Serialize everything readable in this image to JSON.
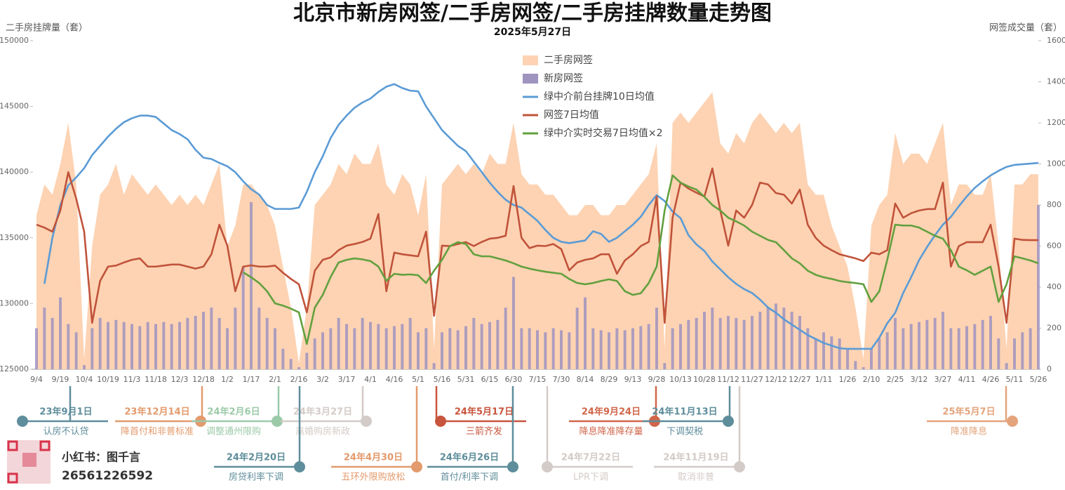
{
  "chart_data": {
    "type": "line",
    "title": "北京市新房网签/二手房网签/二手房挂牌数量走势图",
    "subtitle": "2025年5月27日",
    "y_label": "二手房挂牌量（套）",
    "y2_label": "网签成交量（套）",
    "categories": [
      "9/4",
      null,
      null,
      "9/19",
      null,
      null,
      "10/4",
      null,
      null,
      "10/19",
      null,
      null,
      "11/3",
      null,
      null,
      "11/18",
      null,
      null,
      "12/3",
      null,
      null,
      "12/18",
      null,
      null,
      "1/2",
      null,
      null,
      "1/17",
      null,
      null,
      "2/1",
      null,
      null,
      "2/16",
      null,
      null,
      "3/2",
      null,
      null,
      "3/17",
      null,
      null,
      "4/1",
      null,
      null,
      "4/16",
      null,
      null,
      "5/1",
      null,
      null,
      "5/16",
      null,
      null,
      "5/31",
      null,
      null,
      "6/15",
      null,
      null,
      "6/30",
      null,
      null,
      "7/15",
      null,
      null,
      "7/30",
      null,
      null,
      "8/14",
      null,
      null,
      "8/29",
      null,
      null,
      "9/13",
      null,
      null,
      "9/28",
      null,
      null,
      "10/13",
      null,
      null,
      "10/28",
      null,
      null,
      "11/12",
      null,
      null,
      "11/27",
      null,
      null,
      "12/12",
      null,
      null,
      "12/27",
      null,
      null,
      "1/11",
      null,
      null,
      "1/26",
      null,
      null,
      "2/10",
      null,
      null,
      "2/25",
      null,
      null,
      "3/12",
      null,
      null,
      "3/27",
      null,
      null,
      "4/11",
      null,
      null,
      "4/26",
      null,
      null,
      "5/11",
      null,
      null,
      "5/26"
    ],
    "ylim": [
      125000,
      150000
    ],
    "yticks": [
      125000,
      130000,
      135000,
      140000,
      145000,
      150000
    ],
    "y2lim": [
      0,
      1600
    ],
    "y2ticks": [
      0,
      200,
      400,
      600,
      800,
      1000,
      1200,
      1400,
      1600
    ],
    "legend": "top",
    "series": [
      {
        "name": "二手房网签",
        "type": "area",
        "axis": "y2",
        "color": "#fdd3b3",
        "values": [
          750,
          900,
          850,
          1000,
          1200,
          900,
          50,
          600,
          850,
          900,
          1000,
          850,
          950,
          900,
          850,
          900,
          850,
          800,
          850,
          800,
          850,
          800,
          900,
          1000,
          600,
          700,
          900,
          900,
          850,
          800,
          700,
          500,
          300,
          30,
          300,
          800,
          850,
          900,
          1000,
          950,
          1050,
          1000,
          1000,
          1100,
          900,
          850,
          950,
          900,
          750,
          950,
          100,
          900,
          950,
          1000,
          950,
          1000,
          950,
          1050,
          1000,
          1000,
          1200,
          950,
          900,
          900,
          850,
          850,
          800,
          750,
          750,
          800,
          800,
          750,
          750,
          800,
          800,
          850,
          900,
          950,
          1100,
          100,
          1200,
          1250,
          1200,
          1250,
          1300,
          1350,
          1100,
          1050,
          1150,
          1100,
          1200,
          1250,
          1200,
          1150,
          1200,
          1150,
          1200,
          900,
          850,
          850,
          700,
          600,
          500,
          300,
          50,
          700,
          800,
          850,
          1150,
          1000,
          1050,
          1050,
          1000,
          1100,
          1200,
          800,
          900,
          900,
          850,
          850,
          950,
          600,
          100,
          900,
          900,
          950,
          950
        ]
      },
      {
        "name": "新房网签",
        "type": "bar",
        "axis": "y2",
        "color": "#9f93c0",
        "values": [
          200,
          300,
          250,
          350,
          220,
          180,
          20,
          200,
          250,
          230,
          240,
          230,
          220,
          210,
          230,
          220,
          230,
          220,
          230,
          250,
          260,
          280,
          300,
          250,
          200,
          300,
          500,
          814,
          300,
          250,
          200,
          100,
          50,
          10,
          80,
          150,
          180,
          200,
          250,
          220,
          200,
          250,
          230,
          220,
          200,
          210,
          220,
          250,
          180,
          200,
          30,
          180,
          200,
          190,
          210,
          250,
          220,
          230,
          240,
          300,
          450,
          200,
          200,
          190,
          180,
          200,
          190,
          180,
          300,
          350,
          200,
          190,
          180,
          200,
          190,
          200,
          210,
          220,
          300,
          30,
          200,
          220,
          240,
          250,
          280,
          300,
          250,
          260,
          250,
          240,
          260,
          280,
          300,
          320,
          300,
          280,
          260,
          200,
          150,
          180,
          160,
          150,
          100,
          40,
          10,
          100,
          150,
          180,
          250,
          200,
          220,
          230,
          240,
          250,
          280,
          200,
          200,
          210,
          220,
          240,
          260,
          150,
          30,
          150,
          180,
          200,
          800
        ]
      },
      {
        "name": "绿中介前台挂牌10日均值",
        "type": "line",
        "axis": "y",
        "color": "#5b9bd5",
        "values": [
          null,
          131500,
          135000,
          137500,
          139000,
          139600,
          140300,
          141300,
          142000,
          142700,
          143300,
          143800,
          144100,
          144300,
          144300,
          144200,
          143700,
          143200,
          142900,
          142500,
          141700,
          141100,
          141000,
          140700,
          140450,
          140000,
          139300,
          138700,
          138300,
          137500,
          137200,
          137200,
          137200,
          137300,
          138500,
          140000,
          141200,
          142600,
          143600,
          144300,
          144900,
          145300,
          145600,
          146100,
          146500,
          146700,
          146400,
          146200,
          146150,
          145000,
          144100,
          143200,
          142600,
          142000,
          141600,
          140800,
          140000,
          139200,
          138500,
          137900,
          137500,
          137300,
          136800,
          136300,
          135600,
          135000,
          134700,
          134600,
          134700,
          134800,
          135500,
          135300,
          134700,
          135000,
          135500,
          136000,
          136600,
          137500,
          138250,
          137800,
          137000,
          136500,
          135200,
          134500,
          134000,
          133200,
          132600,
          132000,
          131500,
          131100,
          130800,
          130300,
          129700,
          129300,
          128800,
          128400,
          128000,
          127600,
          127300,
          127000,
          126800,
          126600,
          126550,
          126550,
          126550,
          126550,
          127400,
          128500,
          129300,
          130800,
          132000,
          133300,
          134300,
          135200,
          136000,
          136600,
          137400,
          138150,
          138800,
          139300,
          139750,
          140100,
          140400,
          140550,
          140600,
          140650,
          140700
        ]
      },
      {
        "name": "网签7日均值",
        "type": "line",
        "axis": "y2",
        "color": "#c0533a",
        "values": [
          704,
          690,
          670,
          773,
          960,
          830,
          670,
          226,
          430,
          500,
          505,
          520,
          533,
          540,
          500,
          500,
          505,
          510,
          510,
          500,
          490,
          500,
          560,
          704,
          602,
          380,
          500,
          506,
          500,
          500,
          505,
          470,
          440,
          414,
          277,
          480,
          533,
          545,
          580,
          602,
          610,
          620,
          636,
          756,
          380,
          568,
          560,
          555,
          550,
          670,
          260,
          602,
          600,
          610,
          619,
          600,
          620,
          636,
          640,
          650,
          892,
          640,
          590,
          602,
          600,
          610,
          585,
          482,
          520,
          533,
          540,
          560,
          560,
          465,
          530,
          560,
          600,
          620,
          841,
          226,
          738,
          909,
          880,
          860,
          841,
          978,
          773,
          602,
          773,
          738,
          800,
          909,
          900,
          858,
          850,
          807,
          875,
          704,
          640,
          602,
          580,
          560,
          550,
          540,
          527,
          568,
          560,
          580,
          807,
          738,
          760,
          773,
          780,
          780,
          909,
          500,
          600,
          619,
          619,
          619,
          704,
          500,
          226,
          636,
          630,
          629,
          629
        ]
      },
      {
        "name": "绿中介实时交易7日均值×2",
        "type": "line",
        "axis": "y2",
        "color": "#62a03e",
        "values": [
          null,
          null,
          null,
          null,
          null,
          null,
          null,
          null,
          null,
          null,
          null,
          null,
          null,
          null,
          null,
          null,
          null,
          null,
          null,
          null,
          null,
          null,
          null,
          null,
          null,
          null,
          472,
          448,
          420,
          380,
          321,
          310,
          295,
          277,
          123,
          300,
          362,
          450,
          520,
          533,
          540,
          535,
          527,
          500,
          431,
          465,
          460,
          462,
          458,
          420,
          480,
          533,
          600,
          619,
          610,
          560,
          550,
          550,
          540,
          530,
          516,
          500,
          490,
          482,
          475,
          470,
          465,
          440,
          420,
          414,
          420,
          430,
          438,
          430,
          380,
          362,
          370,
          420,
          500,
          773,
          944,
          909,
          890,
          875,
          840,
          800,
          773,
          738,
          720,
          700,
          670,
          650,
          630,
          619,
          580,
          540,
          516,
          480,
          460,
          448,
          440,
          430,
          424,
          420,
          414,
          328,
          380,
          533,
          704,
          700,
          700,
          690,
          670,
          650,
          636,
          580,
          500,
          482,
          460,
          480,
          500,
          328,
          414,
          550,
          540,
          530,
          516
        ]
      }
    ]
  },
  "annotations": [
    {
      "date": "23年9月1日",
      "text": "认房不认贷",
      "color": "#5e8d9b"
    },
    {
      "date": "23年12月14日",
      "text": "降首付和非普标准",
      "color": "#e39a6c"
    },
    {
      "date": "24年2月6日",
      "text": "调整通州限购",
      "color": "#9ccaa9"
    },
    {
      "date": "24年3月27日",
      "text": "离婚购房新政",
      "color": "#d3cbc7"
    },
    {
      "date": "24年5月17日",
      "text": "三箭齐发",
      "color": "#c8553d"
    },
    {
      "date": "24年9月24日",
      "text": "降息降准降存量",
      "color": "#d0664a"
    },
    {
      "date": "24年11月13日",
      "text": "下调契税",
      "color": "#5e8d9b"
    },
    {
      "date": "25年5月7日",
      "text": "降准降息",
      "color": "#e3a47c"
    },
    {
      "date": "24年2月20日",
      "text": "房贷利率下调",
      "color": "#5e8d9b"
    },
    {
      "date": "24年4月30日",
      "text": "五环外限购放松",
      "color": "#e39a6c"
    },
    {
      "date": "24年6月26日",
      "text": "首付/利率下调",
      "color": "#5e8d9b"
    },
    {
      "date": "24年7月22日",
      "text": "LPR下调",
      "color": "#d3cbc7"
    },
    {
      "date": "24年11月19日",
      "text": "取消非普",
      "color": "#d3cbc7"
    }
  ],
  "footer": {
    "account": "小红书：图千言",
    "id": "26561226592"
  }
}
